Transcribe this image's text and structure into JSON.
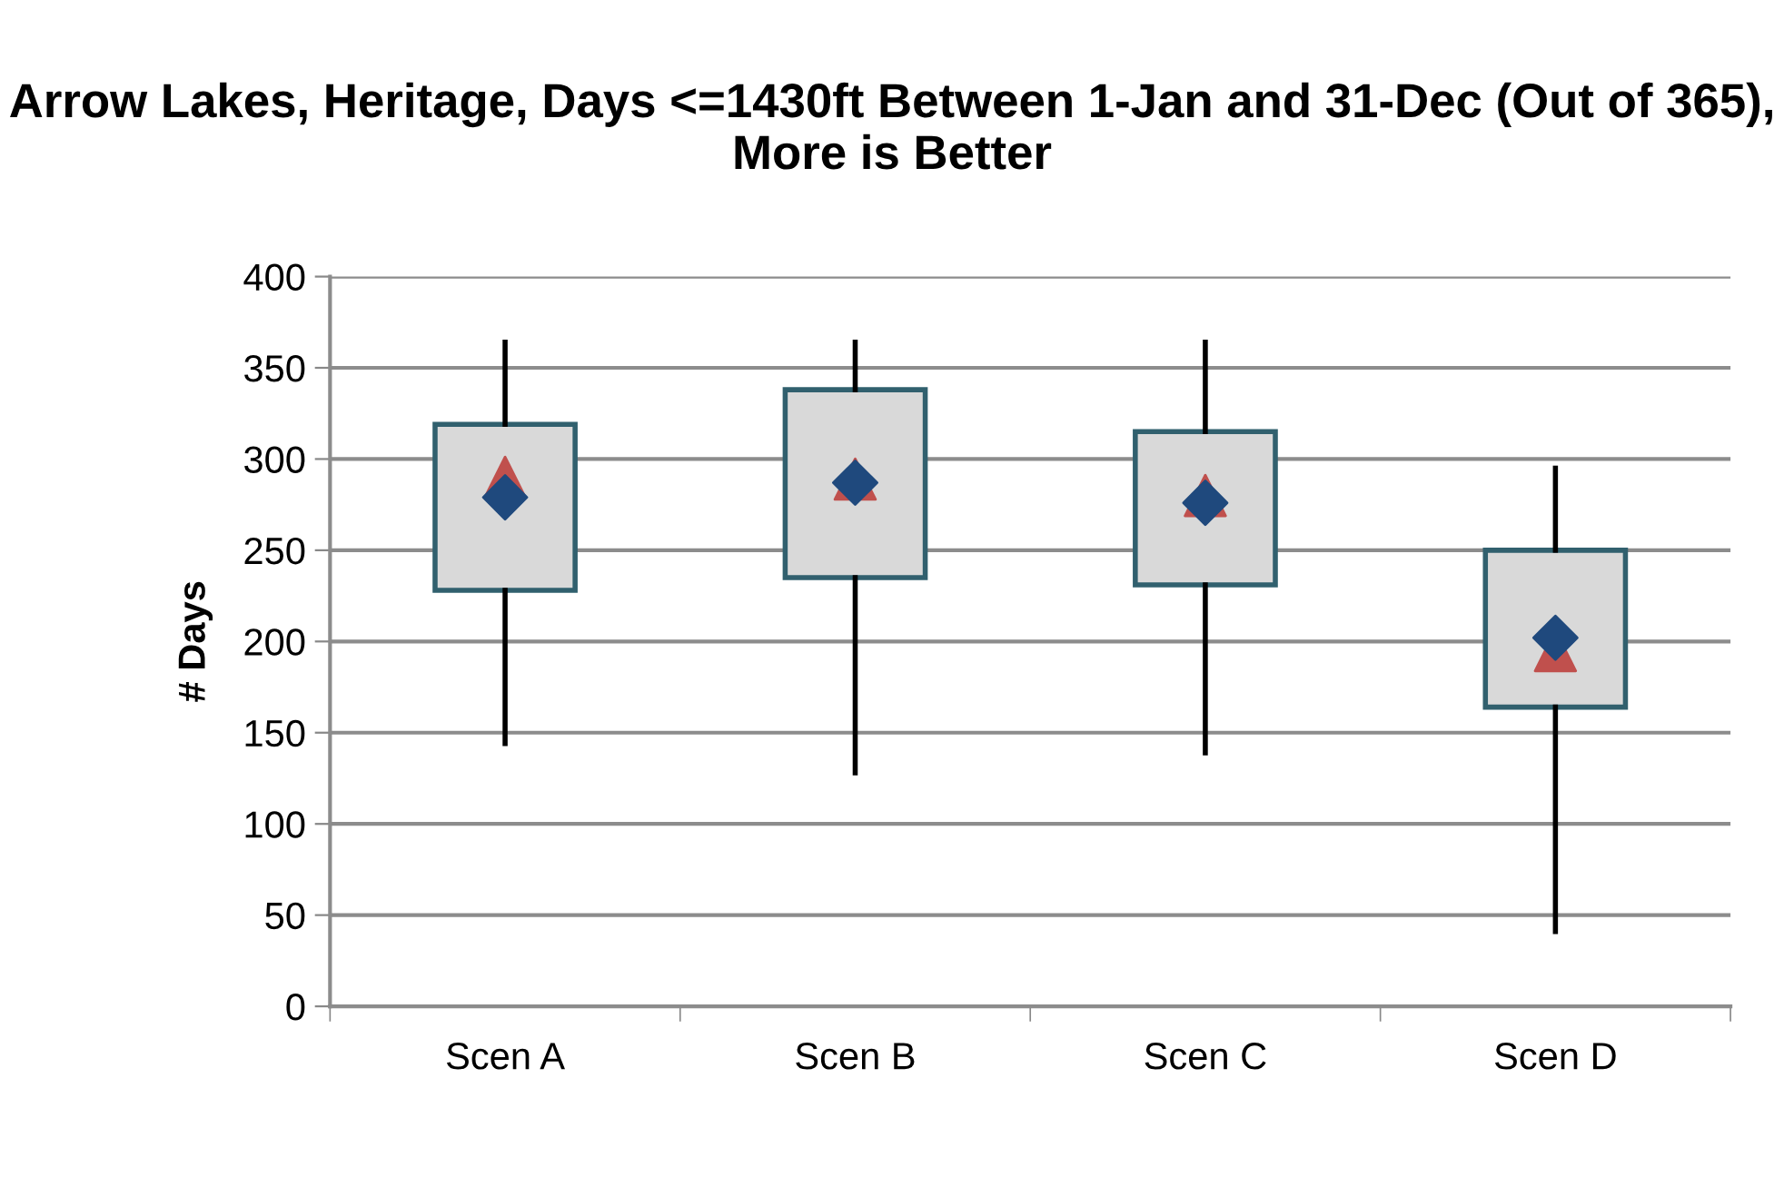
{
  "chart_data": {
    "type": "box",
    "title": "Arrow Lakes, Heritage, Days <=1430ft Between 1-Jan and 31-Dec (Out of 365), More is Better",
    "ylabel": "# Days",
    "categories": [
      "Scen A",
      "Scen B",
      "Scen C",
      "Scen D"
    ],
    "boxes": [
      {
        "low": 144,
        "q1": 228,
        "median": 290,
        "q3": 319,
        "high": 364,
        "mean": 279
      },
      {
        "low": 128,
        "q1": 235,
        "median": 289,
        "q3": 338,
        "high": 364,
        "mean": 287
      },
      {
        "low": 139,
        "q1": 231,
        "median": 280,
        "q3": 315,
        "high": 364,
        "mean": 276
      },
      {
        "low": 41,
        "q1": 164,
        "median": 195,
        "q3": 250,
        "high": 295,
        "mean": 202
      }
    ],
    "color": "#d9d9d9",
    "ylim": [
      0,
      400
    ],
    "yticks": [
      0,
      50,
      100,
      150,
      200,
      250,
      300,
      350,
      400
    ],
    "grid": "y",
    "legend": false
  }
}
